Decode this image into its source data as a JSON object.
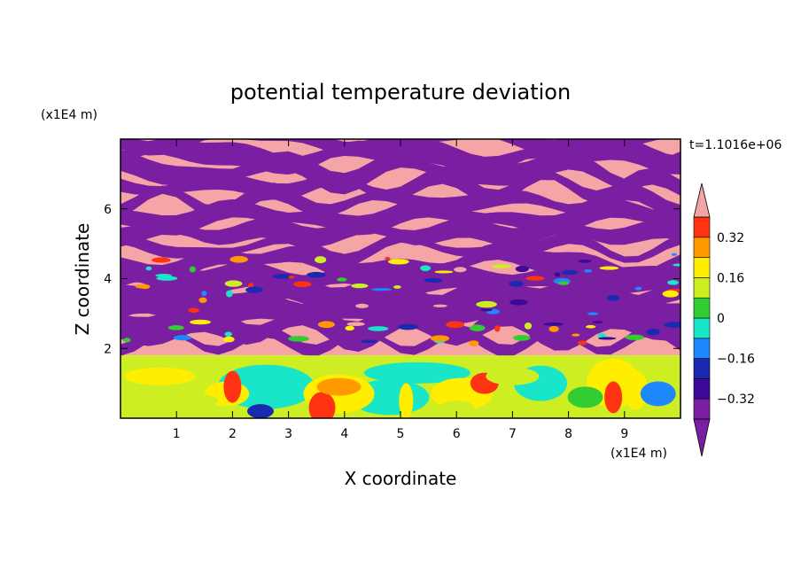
{
  "chart_data": {
    "type": "heatmap",
    "title": "potential temperature deviation",
    "xlabel": "X coordinate",
    "ylabel": "Z coordinate",
    "x_unit": "(x1E4 m)",
    "y_unit": "(x1E4 m)",
    "time_label": "t=1.1016e+06",
    "xlim": [
      0,
      10
    ],
    "ylim": [
      0,
      8
    ],
    "x_ticks": [
      1,
      2,
      3,
      4,
      5,
      6,
      7,
      8,
      9
    ],
    "x_tick_labels": [
      "1",
      "2",
      "3",
      "4",
      "5",
      "6",
      "7",
      "8",
      "9"
    ],
    "y_ticks": [
      2,
      4,
      6
    ],
    "y_tick_labels": [
      "2",
      "4",
      "6"
    ],
    "colorbar": {
      "levels": [
        -0.4,
        -0.32,
        -0.24,
        -0.16,
        -0.08,
        0,
        0.08,
        0.16,
        0.24,
        0.32,
        0.4
      ],
      "colors": [
        "#7b1fa2",
        "#3b0a96",
        "#1a2ab0",
        "#1e88ff",
        "#19e6c8",
        "#33cc33",
        "#ccee22",
        "#ffee00",
        "#ff9900",
        "#ff3311",
        "#f5a5a5"
      ],
      "tick_values": [
        0.32,
        0.16,
        0,
        -0.16,
        -0.32
      ],
      "tick_labels": [
        "0.32",
        "0.16",
        "0",
        "-0.16",
        "-0.32"
      ],
      "extend": "both"
    },
    "field_description_regions": [
      {
        "z_range": [
          1.8,
          8.0
        ],
        "pattern": "alternating layers",
        "dominant_values": [
          0.4,
          -0.4
        ]
      },
      {
        "z_range": [
          0.0,
          1.8
        ],
        "pattern": "mixed boundary layer",
        "dominant_values": [
          -0.1,
          0.0,
          0.1,
          0.2
        ]
      }
    ],
    "grid": false
  }
}
